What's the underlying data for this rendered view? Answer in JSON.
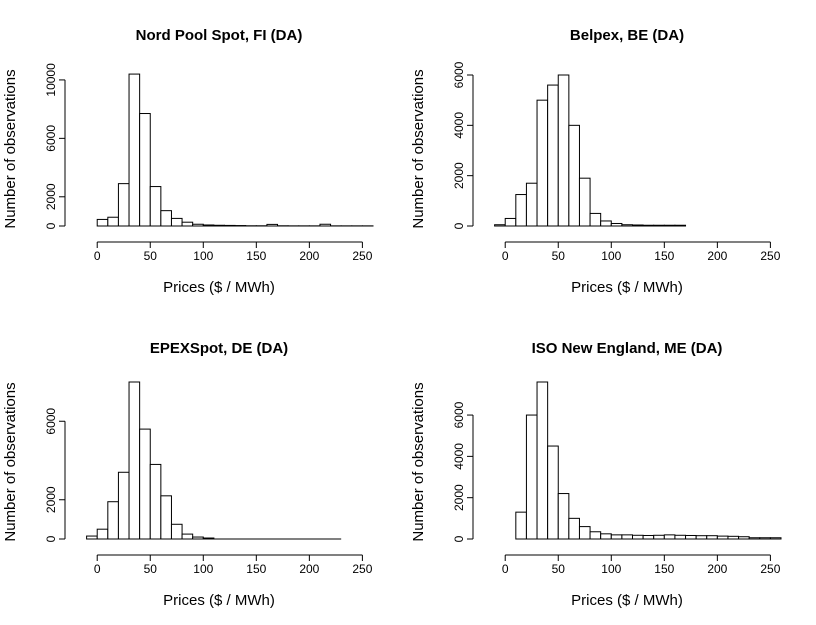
{
  "chart_data": [
    {
      "type": "bar",
      "title": "Nord Pool Spot, FI (DA)",
      "xlabel": "Prices ($ / MWh)",
      "ylabel": "Number of observations",
      "xlim": [
        -20,
        260
      ],
      "ylim": [
        0,
        10200
      ],
      "xticks": [
        "0",
        "50",
        "100",
        "150",
        "200",
        "250"
      ],
      "yticks": [
        "0",
        "2000",
        "6000",
        "10000"
      ],
      "bin_width": 10,
      "bins": [
        {
          "start": 0,
          "count": 450
        },
        {
          "start": 10,
          "count": 600
        },
        {
          "start": 20,
          "count": 2900
        },
        {
          "start": 30,
          "count": 10400
        },
        {
          "start": 40,
          "count": 7700
        },
        {
          "start": 50,
          "count": 2700
        },
        {
          "start": 60,
          "count": 1050
        },
        {
          "start": 70,
          "count": 520
        },
        {
          "start": 80,
          "count": 260
        },
        {
          "start": 90,
          "count": 120
        },
        {
          "start": 100,
          "count": 70
        },
        {
          "start": 110,
          "count": 50
        },
        {
          "start": 120,
          "count": 40
        },
        {
          "start": 130,
          "count": 30
        },
        {
          "start": 140,
          "count": 15
        },
        {
          "start": 150,
          "count": 15
        },
        {
          "start": 160,
          "count": 110
        },
        {
          "start": 170,
          "count": 15
        },
        {
          "start": 180,
          "count": 10
        },
        {
          "start": 190,
          "count": 10
        },
        {
          "start": 200,
          "count": 10
        },
        {
          "start": 210,
          "count": 120
        },
        {
          "start": 220,
          "count": 10
        },
        {
          "start": 230,
          "count": 10
        },
        {
          "start": 240,
          "count": 10
        },
        {
          "start": 250,
          "count": 10
        }
      ]
    },
    {
      "type": "bar",
      "title": "Belpex, BE (DA)",
      "xlabel": "Prices ($ / MWh)",
      "ylabel": "Number of observations",
      "xlim": [
        -20,
        260
      ],
      "ylim": [
        0,
        6000
      ],
      "xticks": [
        "0",
        "50",
        "100",
        "150",
        "200",
        "250"
      ],
      "yticks": [
        "0",
        "2000",
        "4000",
        "6000"
      ],
      "bin_width": 10,
      "bins": [
        {
          "start": -10,
          "count": 50
        },
        {
          "start": 0,
          "count": 300
        },
        {
          "start": 10,
          "count": 1250
        },
        {
          "start": 20,
          "count": 1700
        },
        {
          "start": 30,
          "count": 5000
        },
        {
          "start": 40,
          "count": 5600
        },
        {
          "start": 50,
          "count": 6000
        },
        {
          "start": 60,
          "count": 4000
        },
        {
          "start": 70,
          "count": 1900
        },
        {
          "start": 80,
          "count": 500
        },
        {
          "start": 90,
          "count": 200
        },
        {
          "start": 100,
          "count": 100
        },
        {
          "start": 110,
          "count": 50
        },
        {
          "start": 120,
          "count": 40
        },
        {
          "start": 130,
          "count": 30
        },
        {
          "start": 140,
          "count": 30
        },
        {
          "start": 150,
          "count": 30
        },
        {
          "start": 160,
          "count": 30
        }
      ]
    },
    {
      "type": "bar",
      "title": "EPEXSpot, DE (DA)",
      "xlabel": "Prices ($ / MWh)",
      "ylabel": "Number of observations",
      "xlim": [
        -20,
        260
      ],
      "ylim": [
        0,
        8000
      ],
      "xticks": [
        "0",
        "50",
        "100",
        "150",
        "200",
        "250"
      ],
      "yticks": [
        "0",
        "2000",
        "6000"
      ],
      "bin_width": 10,
      "bins": [
        {
          "start": -10,
          "count": 150
        },
        {
          "start": 0,
          "count": 500
        },
        {
          "start": 10,
          "count": 1900
        },
        {
          "start": 20,
          "count": 3400
        },
        {
          "start": 30,
          "count": 8000
        },
        {
          "start": 40,
          "count": 5600
        },
        {
          "start": 50,
          "count": 3800
        },
        {
          "start": 60,
          "count": 2200
        },
        {
          "start": 70,
          "count": 750
        },
        {
          "start": 80,
          "count": 250
        },
        {
          "start": 90,
          "count": 100
        },
        {
          "start": 100,
          "count": 50
        }
      ],
      "baseline_extends_to": 230
    },
    {
      "type": "bar",
      "title": "ISO New England, ME (DA)",
      "xlabel": "Prices ($ / MWh)",
      "ylabel": "Number of observations",
      "xlim": [
        -20,
        260
      ],
      "ylim": [
        0,
        7600
      ],
      "xticks": [
        "0",
        "50",
        "100",
        "150",
        "200",
        "250"
      ],
      "yticks": [
        "0",
        "2000",
        "4000",
        "6000"
      ],
      "bin_width": 10,
      "bins": [
        {
          "start": 10,
          "count": 1300
        },
        {
          "start": 20,
          "count": 6000
        },
        {
          "start": 30,
          "count": 7600
        },
        {
          "start": 40,
          "count": 4500
        },
        {
          "start": 50,
          "count": 2200
        },
        {
          "start": 60,
          "count": 1000
        },
        {
          "start": 70,
          "count": 600
        },
        {
          "start": 80,
          "count": 350
        },
        {
          "start": 90,
          "count": 250
        },
        {
          "start": 100,
          "count": 200
        },
        {
          "start": 110,
          "count": 200
        },
        {
          "start": 120,
          "count": 180
        },
        {
          "start": 130,
          "count": 170
        },
        {
          "start": 140,
          "count": 180
        },
        {
          "start": 150,
          "count": 200
        },
        {
          "start": 160,
          "count": 180
        },
        {
          "start": 170,
          "count": 170
        },
        {
          "start": 180,
          "count": 160
        },
        {
          "start": 190,
          "count": 160
        },
        {
          "start": 200,
          "count": 140
        },
        {
          "start": 210,
          "count": 130
        },
        {
          "start": 220,
          "count": 110
        },
        {
          "start": 230,
          "count": 60
        },
        {
          "start": 240,
          "count": 60
        },
        {
          "start": 250,
          "count": 60
        }
      ]
    }
  ]
}
